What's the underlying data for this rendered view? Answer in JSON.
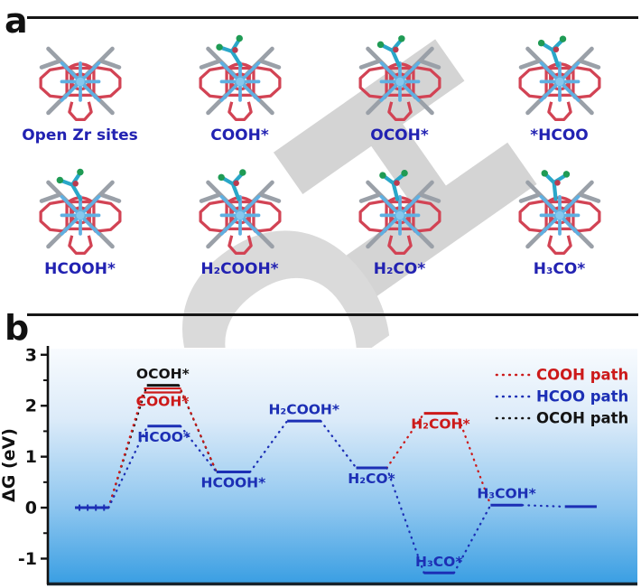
{
  "figure": {
    "panel_a_label": "a",
    "panel_b_label": "b"
  },
  "watermark": {
    "letters": [
      "H",
      "C"
    ]
  },
  "panel_a": {
    "molecules": [
      {
        "label": "Open Zr sites",
        "adsorbate": false,
        "rot": 0
      },
      {
        "label": "COOH*",
        "adsorbate": true,
        "rot": -8
      },
      {
        "label": "OCOH*",
        "adsorbate": true,
        "rot": 0
      },
      {
        "label": "*HCOO",
        "adsorbate": true,
        "rot": 5
      },
      {
        "label": "HCOOH*",
        "adsorbate": true,
        "rot": -6
      },
      {
        "label": "H₂COOH*",
        "adsorbate": true,
        "rot": 3
      },
      {
        "label": "H₂CO*",
        "adsorbate": true,
        "rot": 10
      },
      {
        "label": "H₃CO*",
        "adsorbate": true,
        "rot": 18
      }
    ]
  },
  "chart_data": {
    "type": "energy-diagram",
    "ylabel": "ΔG (eV)",
    "yticks": [
      3,
      2,
      1,
      0,
      -1
    ],
    "ylim": [
      -1.47,
      3.12
    ],
    "unit": "eV",
    "grid": false,
    "legend_position": "top-right",
    "levels": [
      {
        "id": "initial",
        "label": "",
        "value": 0.0,
        "x": [
          0.046,
          0.103
        ],
        "color": "#1c2fb5",
        "markers": true
      },
      {
        "id": "OCOH",
        "label": "OCOH*",
        "value": 2.4,
        "x": [
          0.168,
          0.222
        ],
        "color": "#141414",
        "label_pos": "above"
      },
      {
        "id": "COOH",
        "label": "COOH*",
        "value": 2.3,
        "x": [
          0.163,
          0.226
        ],
        "color": "#cc1a1a",
        "label_pos": "below",
        "double_line": true
      },
      {
        "id": "HCOO",
        "label": "HCOO*",
        "value": 1.6,
        "x": [
          0.169,
          0.225
        ],
        "color": "#1c2fb5",
        "label_pos": "below"
      },
      {
        "id": "HCOOH",
        "label": "HCOOH*",
        "value": 0.7,
        "x": [
          0.286,
          0.343
        ],
        "color": "#1c2fb5",
        "label_pos": "below"
      },
      {
        "id": "H2COOH",
        "label": "H₂COOH*",
        "value": 1.7,
        "x": [
          0.406,
          0.463
        ],
        "color": "#1c2fb5",
        "label_pos": "above"
      },
      {
        "id": "H2CO",
        "label": "H₂CO*",
        "value": 0.78,
        "x": [
          0.523,
          0.575
        ],
        "color": "#1c2fb5",
        "label_pos": "below"
      },
      {
        "id": "H2COH",
        "label": "H₂COH*",
        "value": 1.85,
        "x": [
          0.638,
          0.694
        ],
        "color": "#cc1a1a",
        "label_pos": "below"
      },
      {
        "id": "H3CO",
        "label": "H₃CO*",
        "value": -1.28,
        "x": [
          0.638,
          0.689
        ],
        "color": "#1c2fb5",
        "label_pos": "above"
      },
      {
        "id": "H3COH",
        "label": "H₃COH*",
        "value": 0.05,
        "x": [
          0.751,
          0.805
        ],
        "color": "#1c2fb5",
        "label_pos": "above"
      },
      {
        "id": "final",
        "label": "",
        "value": 0.02,
        "x": [
          0.877,
          0.931
        ],
        "color": "#1c2fb5"
      }
    ],
    "connectors": [
      {
        "from": "initial",
        "to": "OCOH",
        "color": "#141414"
      },
      {
        "from": "initial",
        "to": "COOH",
        "color": "#cc1a1a"
      },
      {
        "from": "initial",
        "to": "HCOO",
        "color": "#1c2fb5"
      },
      {
        "from": "OCOH",
        "to": "HCOOH",
        "color": "#141414"
      },
      {
        "from": "COOH",
        "to": "HCOOH",
        "color": "#cc1a1a"
      },
      {
        "from": "HCOO",
        "to": "HCOOH",
        "color": "#1c2fb5"
      },
      {
        "from": "HCOOH",
        "to": "H2COOH",
        "color": "#1c2fb5"
      },
      {
        "from": "H2COOH",
        "to": "H2CO",
        "color": "#1c2fb5"
      },
      {
        "from": "H2CO",
        "to": "H2COH",
        "color": "#cc1a1a"
      },
      {
        "from": "H2CO",
        "to": "H3CO",
        "color": "#1c2fb5"
      },
      {
        "from": "H2COH",
        "to": "H3COH",
        "color": "#cc1a1a"
      },
      {
        "from": "H3CO",
        "to": "H3COH",
        "color": "#1c2fb5"
      },
      {
        "from": "H3COH",
        "to": "final",
        "color": "#1c2fb5"
      }
    ],
    "legend": [
      {
        "label": "COOH path",
        "color": "#cc1a1a"
      },
      {
        "label": "HCOO path",
        "color": "#1c2fb5"
      },
      {
        "label": "OCOH path",
        "color": "#141414"
      }
    ],
    "background_gradient": [
      "#f8fbfe",
      "#dcebf9",
      "#8ec6ef",
      "#3b9fe3"
    ]
  }
}
